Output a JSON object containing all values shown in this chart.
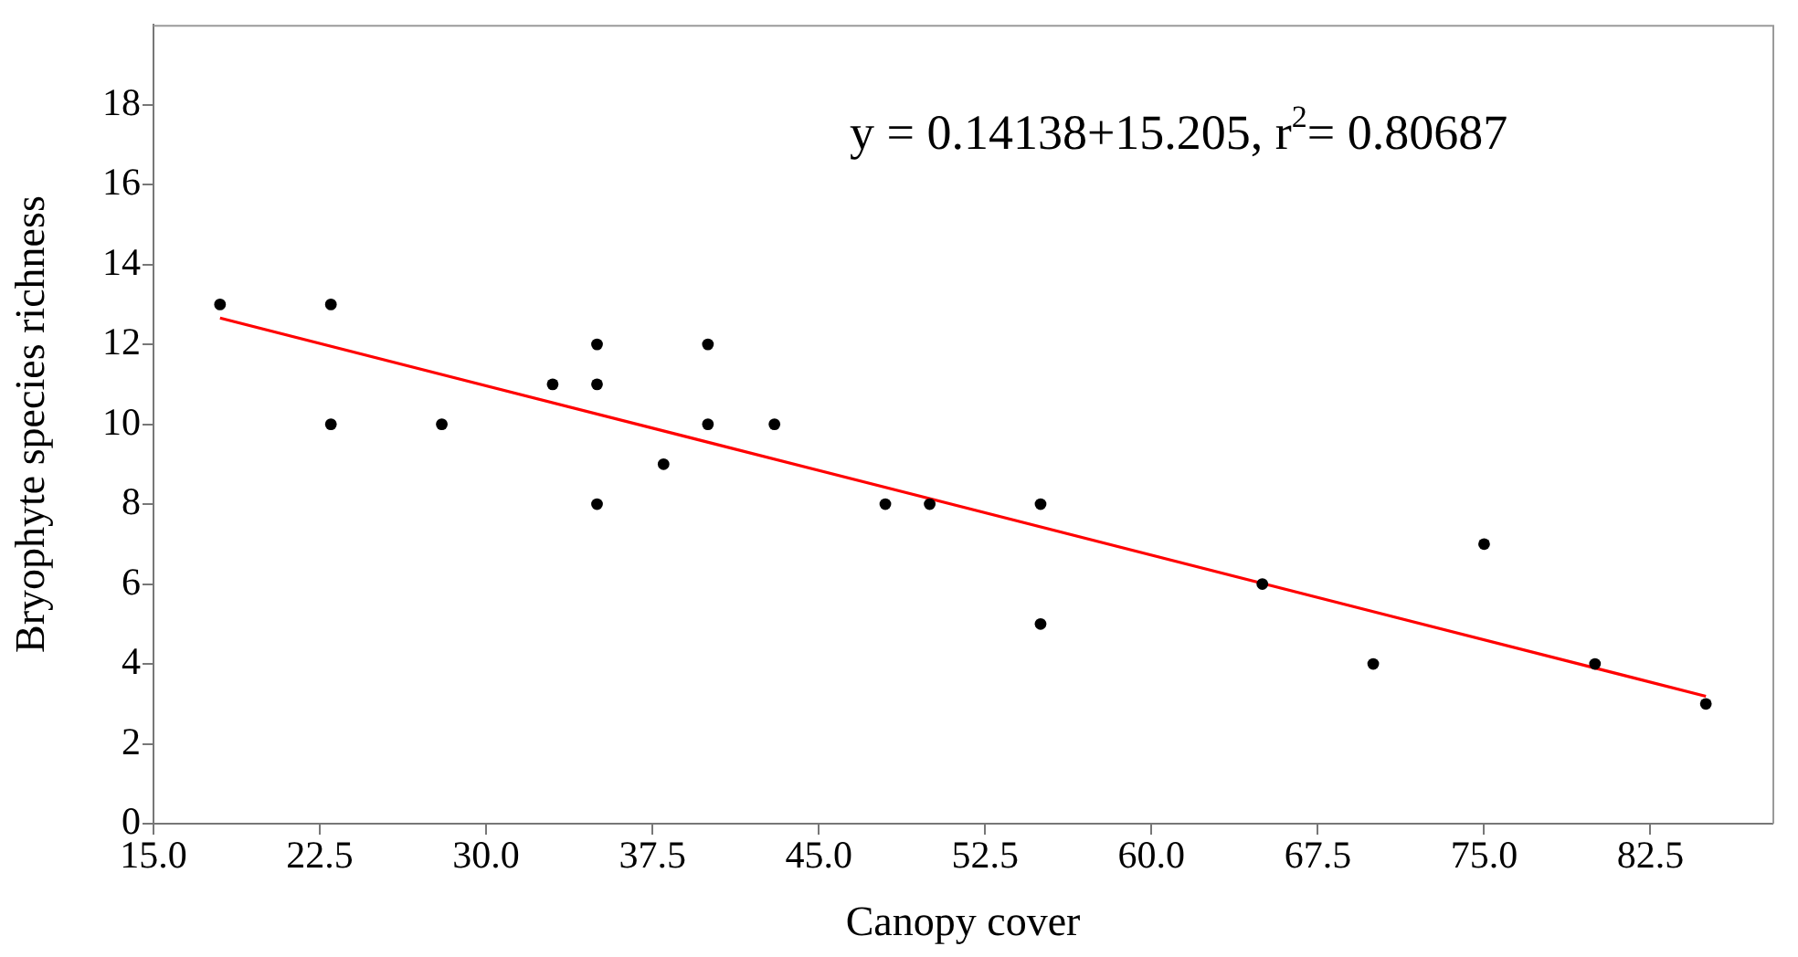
{
  "chart_data": {
    "type": "scatter",
    "xlabel": "Canopy cover",
    "ylabel": "Bryophyte species richness",
    "annotations": [
      "y = 0.14138+15.205, r$^{2}$= 0.80687"
    ],
    "xlim": [
      15,
      88
    ],
    "xticks": [
      {
        "value": 15,
        "label": "15.0"
      },
      22.5,
      {
        "value": 30,
        "label": "30.0"
      },
      37.5,
      {
        "value": 45,
        "label": "45.0"
      },
      52.5,
      {
        "value": 60,
        "label": "60.0"
      },
      67.5,
      {
        "value": 75,
        "label": "75.0"
      },
      82.5
    ],
    "ylim": [
      0,
      20
    ],
    "yticks": [
      0,
      2,
      4,
      6,
      8,
      10,
      12,
      14,
      16,
      18
    ],
    "grid": false,
    "legend": false,
    "marker": "circle",
    "series": [
      {
        "color": "#000000",
        "x": [
          18,
          23,
          23,
          28,
          33,
          35,
          35,
          35,
          38,
          40,
          40,
          43,
          48,
          50,
          55,
          55,
          65,
          70,
          75,
          80,
          85
        ],
        "values": [
          13,
          13,
          10,
          10,
          11,
          12,
          11,
          8,
          9,
          12,
          10,
          10,
          8,
          8,
          8,
          5,
          6,
          4,
          7,
          4,
          3
        ]
      },
      {
        "type": "line",
        "color": "#ff0000",
        "marker": "none",
        "line_style": "solid",
        "x": [
          18,
          85
        ],
        "values": [
          12.66,
          3.19
        ]
      }
    ]
  }
}
